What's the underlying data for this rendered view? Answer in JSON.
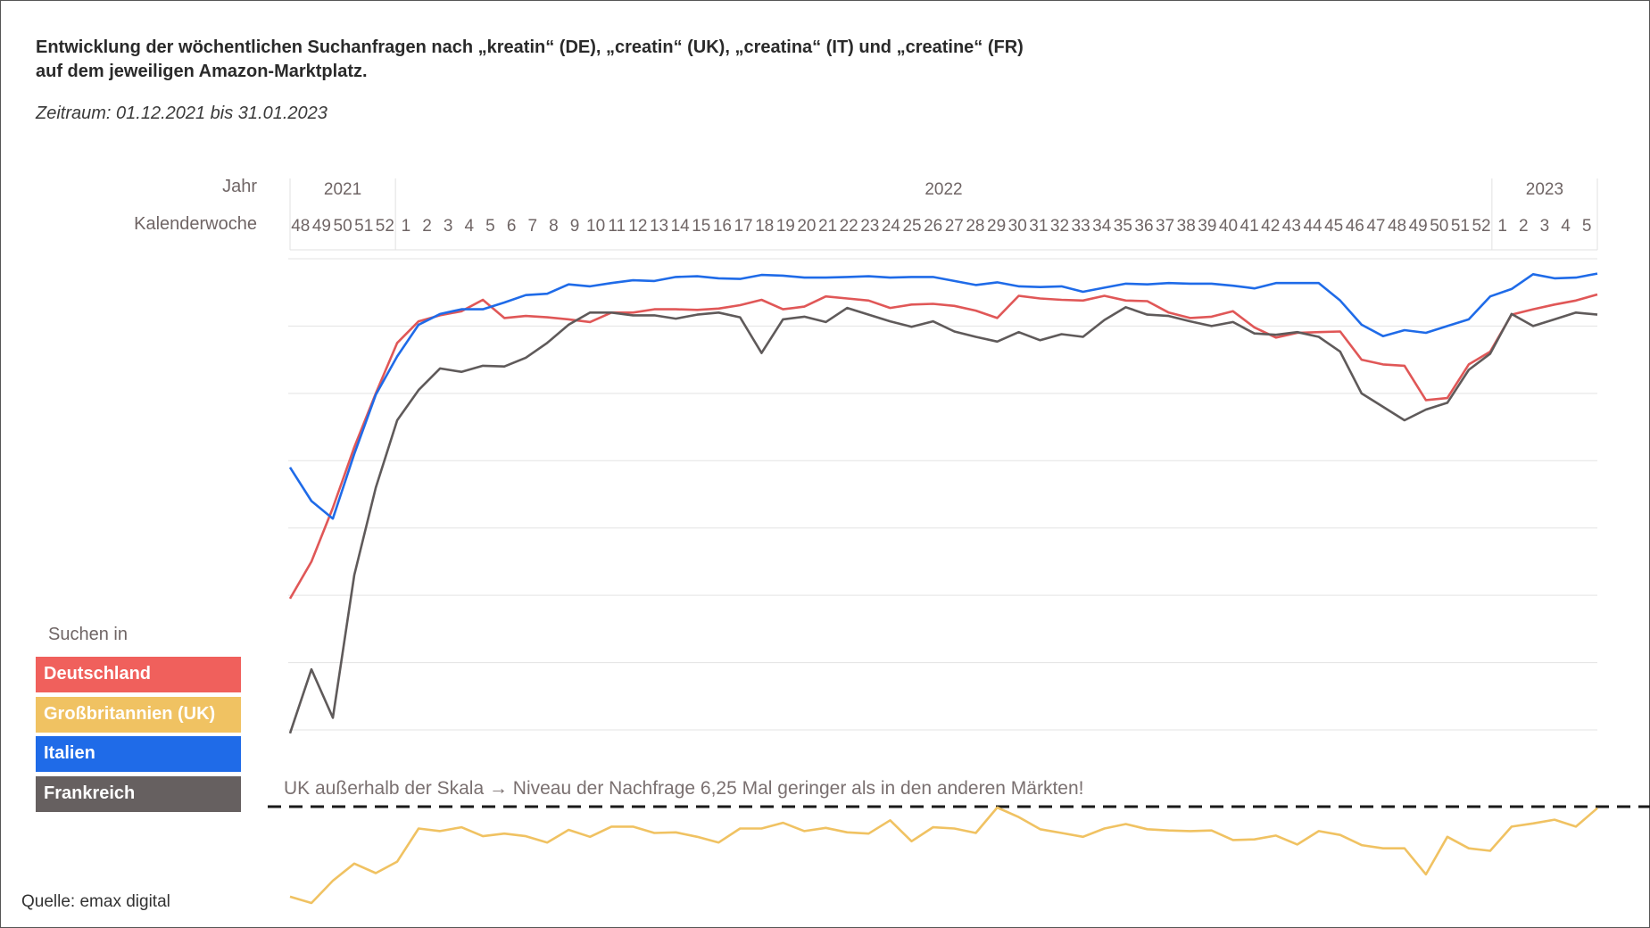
{
  "title_line1": "Entwicklung der wöchentlichen Suchanfragen nach „kreatin“ (DE), „creatin“ (UK), „creatina“ (IT) und „creatine“ (FR)",
  "title_line2": "auf dem jeweiligen  Amazon-Marktplatz.",
  "period": "Zeitraum:  01.12.2021 bis 31.01.2023",
  "header": {
    "year_label": "Jahr",
    "week_label": "Kalenderwoche"
  },
  "legend": {
    "title": "Suchen in",
    "items": [
      {
        "label": "Deutschland",
        "color": "#f0605c"
      },
      {
        "label": "Großbritannien (UK)",
        "color": "#f0c262"
      },
      {
        "label": "Italien",
        "color": "#1f6be8"
      },
      {
        "label": "Frankreich",
        "color": "#666060"
      }
    ]
  },
  "note": "UK außerhalb der Skala → Niveau der Nachfrage 6,25 Mal geringer als in den anderen Märkten!",
  "source": "Quelle: emax digital",
  "chart_data": {
    "type": "line",
    "years": [
      {
        "label": "2021",
        "weeks": 5
      },
      {
        "label": "2022",
        "weeks": 52
      },
      {
        "label": "2023",
        "weeks": 5
      }
    ],
    "x": [
      "48",
      "49",
      "50",
      "51",
      "52",
      "1",
      "2",
      "3",
      "4",
      "5",
      "6",
      "7",
      "8",
      "9",
      "10",
      "11",
      "12",
      "13",
      "14",
      "15",
      "16",
      "17",
      "18",
      "19",
      "20",
      "21",
      "22",
      "23",
      "24",
      "25",
      "26",
      "27",
      "28",
      "29",
      "30",
      "31",
      "32",
      "33",
      "34",
      "35",
      "36",
      "37",
      "38",
      "39",
      "40",
      "41",
      "42",
      "43",
      "44",
      "45",
      "46",
      "47",
      "48",
      "49",
      "50",
      "51",
      "52",
      "1",
      "2",
      "3",
      "4",
      "5"
    ],
    "ylim": [
      0,
      7
    ],
    "grid": true,
    "series": [
      {
        "name": "Deutschland",
        "color": "#e05757",
        "values": [
          1.95,
          2.5,
          3.3,
          4.2,
          5.0,
          5.75,
          6.07,
          6.16,
          6.22,
          6.39,
          6.12,
          6.15,
          6.13,
          6.1,
          6.06,
          6.2,
          6.2,
          6.25,
          6.25,
          6.24,
          6.26,
          6.31,
          6.39,
          6.25,
          6.29,
          6.44,
          6.41,
          6.38,
          6.27,
          6.32,
          6.33,
          6.3,
          6.23,
          6.12,
          6.45,
          6.41,
          6.39,
          6.38,
          6.45,
          6.38,
          6.37,
          6.2,
          6.12,
          6.14,
          6.22,
          5.98,
          5.83,
          5.9,
          5.91,
          5.92,
          5.5,
          5.43,
          5.41,
          4.9,
          4.93,
          5.43,
          5.62,
          6.17,
          6.25,
          6.32,
          6.38,
          6.47
        ]
      },
      {
        "name": "Italien",
        "color": "#1f6be8",
        "values": [
          3.9,
          3.4,
          3.14,
          4.1,
          4.98,
          5.55,
          6.02,
          6.18,
          6.25,
          6.25,
          6.35,
          6.46,
          6.48,
          6.62,
          6.59,
          6.64,
          6.68,
          6.67,
          6.73,
          6.74,
          6.71,
          6.7,
          6.76,
          6.75,
          6.72,
          6.72,
          6.73,
          6.74,
          6.72,
          6.73,
          6.73,
          6.67,
          6.61,
          6.65,
          6.59,
          6.58,
          6.59,
          6.51,
          6.57,
          6.63,
          6.62,
          6.64,
          6.63,
          6.63,
          6.6,
          6.56,
          6.64,
          6.64,
          6.64,
          6.38,
          6.02,
          5.85,
          5.94,
          5.9,
          6.0,
          6.1,
          6.44,
          6.55,
          6.77,
          6.71,
          6.72,
          6.78
        ]
      },
      {
        "name": "Frankreich",
        "color": "#5f5a5a",
        "values": [
          -0.05,
          0.9,
          0.18,
          2.3,
          3.6,
          4.6,
          5.05,
          5.37,
          5.32,
          5.41,
          5.4,
          5.53,
          5.75,
          6.02,
          6.2,
          6.2,
          6.16,
          6.16,
          6.11,
          6.17,
          6.2,
          6.13,
          5.6,
          6.1,
          6.14,
          6.06,
          6.27,
          6.17,
          6.07,
          5.99,
          6.07,
          5.92,
          5.84,
          5.77,
          5.91,
          5.79,
          5.88,
          5.84,
          6.09,
          6.28,
          6.17,
          6.15,
          6.07,
          6.0,
          6.06,
          5.89,
          5.87,
          5.91,
          5.84,
          5.62,
          5.0,
          4.8,
          4.6,
          4.76,
          4.86,
          5.35,
          5.59,
          6.18,
          6.0,
          6.1,
          6.2,
          6.17
        ]
      },
      {
        "name": "Großbritannien (UK)",
        "color": "#f0c262",
        "scale": "separate",
        "values": [
          0.1,
          0.0,
          0.35,
          0.62,
          0.47,
          0.65,
          1.17,
          1.13,
          1.19,
          1.05,
          1.09,
          1.05,
          0.95,
          1.15,
          1.04,
          1.2,
          1.2,
          1.1,
          1.11,
          1.04,
          0.95,
          1.17,
          1.17,
          1.26,
          1.13,
          1.18,
          1.11,
          1.09,
          1.3,
          0.97,
          1.19,
          1.17,
          1.1,
          1.5,
          1.35,
          1.16,
          1.1,
          1.04,
          1.17,
          1.24,
          1.16,
          1.14,
          1.13,
          1.14,
          0.99,
          1.0,
          1.06,
          0.92,
          1.13,
          1.07,
          0.91,
          0.86,
          0.86,
          0.45,
          1.04,
          0.86,
          0.82,
          1.2,
          1.25,
          1.31,
          1.2,
          1.49
        ]
      }
    ]
  }
}
